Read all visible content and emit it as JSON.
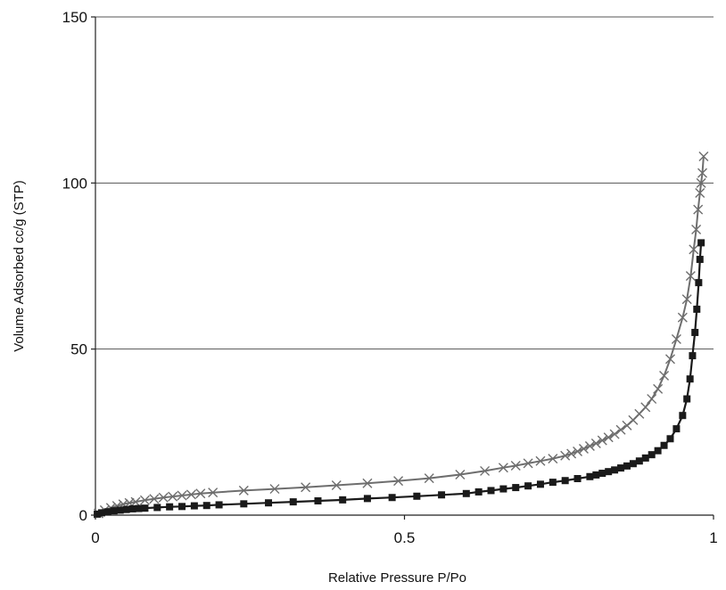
{
  "chart_data": {
    "type": "scatter",
    "title": "",
    "xlabel": "Relative Pressure P/Po",
    "ylabel": "Volume Adsorbed cc/g (STP)",
    "xlim": [
      0,
      1
    ],
    "ylim": [
      0,
      150
    ],
    "x_ticks": [
      {
        "value": 0,
        "label": "0"
      },
      {
        "value": 0.5,
        "label": "0.5"
      },
      {
        "value": 1,
        "label": "1"
      }
    ],
    "y_ticks": [
      {
        "value": 0,
        "label": "0"
      },
      {
        "value": 50,
        "label": "50"
      },
      {
        "value": 100,
        "label": "100"
      },
      {
        "value": 150,
        "label": "150"
      }
    ],
    "grid": "horizontal",
    "legend": "none",
    "series": [
      {
        "marker": "x",
        "color": "#6e6e6e",
        "points": [
          [
            0.005,
            0.5
          ],
          [
            0.015,
            1.5
          ],
          [
            0.025,
            2.2
          ],
          [
            0.035,
            2.8
          ],
          [
            0.045,
            3.3
          ],
          [
            0.055,
            3.7
          ],
          [
            0.065,
            4.0
          ],
          [
            0.08,
            4.5
          ],
          [
            0.095,
            4.9
          ],
          [
            0.11,
            5.3
          ],
          [
            0.125,
            5.6
          ],
          [
            0.14,
            5.9
          ],
          [
            0.155,
            6.2
          ],
          [
            0.17,
            6.5
          ],
          [
            0.19,
            6.8
          ],
          [
            0.24,
            7.4
          ],
          [
            0.29,
            7.9
          ],
          [
            0.34,
            8.4
          ],
          [
            0.39,
            9.0
          ],
          [
            0.44,
            9.6
          ],
          [
            0.49,
            10.3
          ],
          [
            0.54,
            11.1
          ],
          [
            0.59,
            12.2
          ],
          [
            0.63,
            13.3
          ],
          [
            0.66,
            14.3
          ],
          [
            0.68,
            14.9
          ],
          [
            0.7,
            15.6
          ],
          [
            0.72,
            16.3
          ],
          [
            0.74,
            17.0
          ],
          [
            0.76,
            17.9
          ],
          [
            0.77,
            18.5
          ],
          [
            0.78,
            19.2
          ],
          [
            0.79,
            20.0
          ],
          [
            0.8,
            20.8
          ],
          [
            0.81,
            21.6
          ],
          [
            0.82,
            22.5
          ],
          [
            0.83,
            23.4
          ],
          [
            0.84,
            24.4
          ],
          [
            0.85,
            25.7
          ],
          [
            0.86,
            27.0
          ],
          [
            0.87,
            28.6
          ],
          [
            0.88,
            30.5
          ],
          [
            0.89,
            32.5
          ],
          [
            0.9,
            35.0
          ],
          [
            0.91,
            38.0
          ],
          [
            0.92,
            42.0
          ],
          [
            0.93,
            47.0
          ],
          [
            0.94,
            53.0
          ],
          [
            0.95,
            59.5
          ],
          [
            0.957,
            65.0
          ],
          [
            0.963,
            72.0
          ],
          [
            0.968,
            80.0
          ],
          [
            0.972,
            86.0
          ],
          [
            0.975,
            92.0
          ],
          [
            0.978,
            97.0
          ],
          [
            0.98,
            100.0
          ],
          [
            0.982,
            103.0
          ],
          [
            0.984,
            108.0
          ]
        ]
      },
      {
        "marker": "square",
        "color": "#1a1a1a",
        "points": [
          [
            0.003,
            0.3
          ],
          [
            0.01,
            0.7
          ],
          [
            0.02,
            1.0
          ],
          [
            0.03,
            1.3
          ],
          [
            0.04,
            1.5
          ],
          [
            0.05,
            1.7
          ],
          [
            0.06,
            1.9
          ],
          [
            0.07,
            2.0
          ],
          [
            0.08,
            2.1
          ],
          [
            0.1,
            2.3
          ],
          [
            0.12,
            2.5
          ],
          [
            0.14,
            2.6
          ],
          [
            0.16,
            2.8
          ],
          [
            0.18,
            2.9
          ],
          [
            0.2,
            3.1
          ],
          [
            0.24,
            3.4
          ],
          [
            0.28,
            3.7
          ],
          [
            0.32,
            4.0
          ],
          [
            0.36,
            4.3
          ],
          [
            0.4,
            4.6
          ],
          [
            0.44,
            5.0
          ],
          [
            0.48,
            5.3
          ],
          [
            0.52,
            5.7
          ],
          [
            0.56,
            6.1
          ],
          [
            0.6,
            6.5
          ],
          [
            0.62,
            7.0
          ],
          [
            0.64,
            7.4
          ],
          [
            0.66,
            7.9
          ],
          [
            0.68,
            8.3
          ],
          [
            0.7,
            8.8
          ],
          [
            0.72,
            9.3
          ],
          [
            0.74,
            9.9
          ],
          [
            0.76,
            10.4
          ],
          [
            0.78,
            11.0
          ],
          [
            0.8,
            11.6
          ],
          [
            0.81,
            12.1
          ],
          [
            0.82,
            12.6
          ],
          [
            0.83,
            13.1
          ],
          [
            0.84,
            13.6
          ],
          [
            0.85,
            14.2
          ],
          [
            0.86,
            14.8
          ],
          [
            0.87,
            15.5
          ],
          [
            0.88,
            16.3
          ],
          [
            0.89,
            17.2
          ],
          [
            0.9,
            18.2
          ],
          [
            0.91,
            19.4
          ],
          [
            0.92,
            21.0
          ],
          [
            0.93,
            23.0
          ],
          [
            0.94,
            26.0
          ],
          [
            0.95,
            30.0
          ],
          [
            0.957,
            35.0
          ],
          [
            0.962,
            41.0
          ],
          [
            0.966,
            48.0
          ],
          [
            0.97,
            55.0
          ],
          [
            0.973,
            62.0
          ],
          [
            0.976,
            70.0
          ],
          [
            0.978,
            77.0
          ],
          [
            0.98,
            82.0
          ]
        ]
      }
    ]
  }
}
